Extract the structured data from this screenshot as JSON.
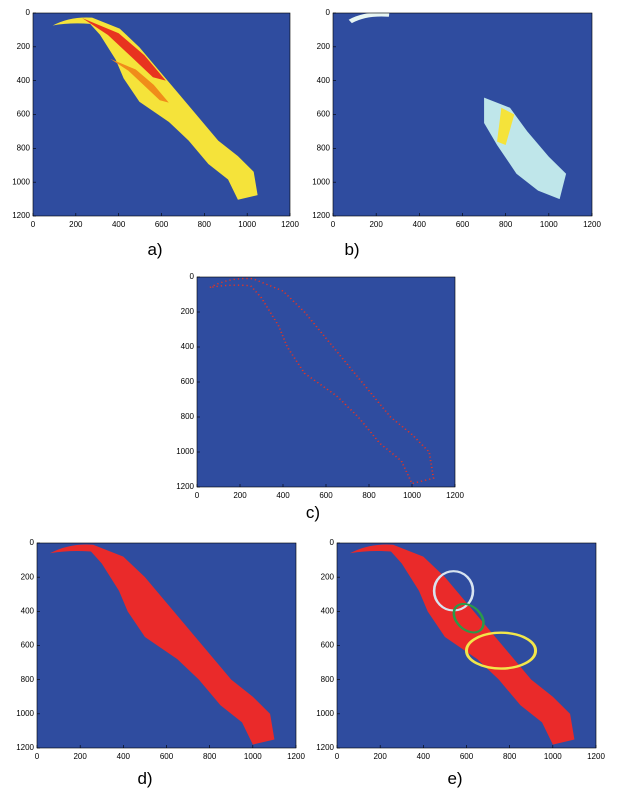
{
  "chart_data": [
    {
      "type": "image",
      "caption": "a)",
      "xlim": [
        0,
        1200
      ],
      "ylim": [
        0,
        1200
      ],
      "y_reversed": true,
      "xticks": [
        0,
        200,
        400,
        600,
        800,
        1000,
        1200
      ],
      "yticks": [
        0,
        200,
        400,
        600,
        800,
        1000,
        1200
      ]
    },
    {
      "type": "image",
      "caption": "b)",
      "xlim": [
        0,
        1200
      ],
      "ylim": [
        0,
        1200
      ],
      "y_reversed": true,
      "xticks": [
        0,
        200,
        400,
        600,
        800,
        1000,
        1200
      ],
      "yticks": [
        0,
        200,
        400,
        600,
        800,
        1000,
        1200
      ]
    },
    {
      "type": "image",
      "caption": "c)",
      "xlim": [
        0,
        1200
      ],
      "ylim": [
        0,
        1200
      ],
      "y_reversed": true,
      "xticks": [
        0,
        200,
        400,
        600,
        800,
        1000,
        1200
      ],
      "yticks": [
        0,
        200,
        400,
        600,
        800,
        1000,
        1200
      ]
    },
    {
      "type": "image",
      "caption": "d)",
      "xlim": [
        0,
        1200
      ],
      "ylim": [
        0,
        1200
      ],
      "y_reversed": true,
      "xticks": [
        0,
        200,
        400,
        600,
        800,
        1000,
        1200
      ],
      "yticks": [
        0,
        200,
        400,
        600,
        800,
        1000,
        1200
      ]
    },
    {
      "type": "image",
      "caption": "e)",
      "xlim": [
        0,
        1200
      ],
      "ylim": [
        0,
        1200
      ],
      "y_reversed": true,
      "xticks": [
        0,
        200,
        400,
        600,
        800,
        1000,
        1200
      ],
      "yticks": [
        0,
        200,
        400,
        600,
        800,
        1000,
        1200
      ]
    }
  ]
}
